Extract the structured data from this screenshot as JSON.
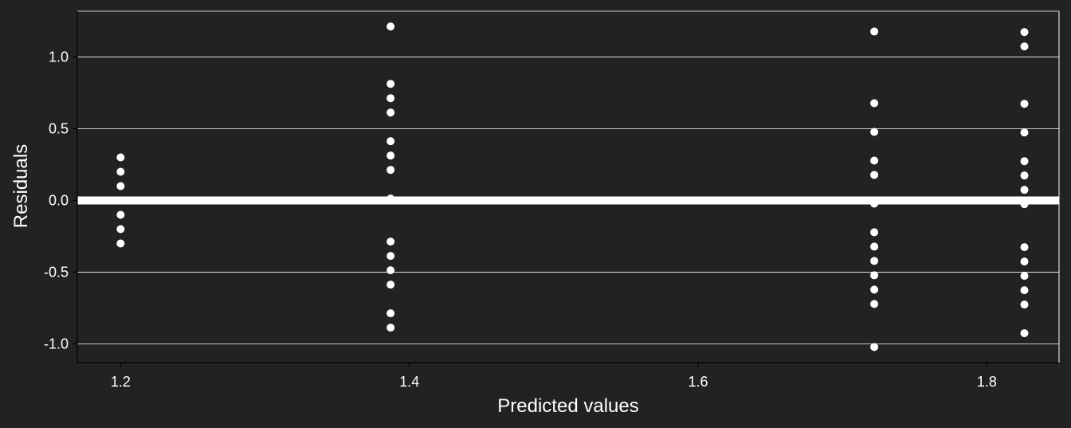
{
  "chart_data": {
    "type": "scatter",
    "title": "",
    "xlabel": "Predicted values",
    "ylabel": "Residuals",
    "xlim": [
      1.17,
      1.85
    ],
    "ylim": [
      -1.12,
      1.32
    ],
    "x_ticks": [
      1.2,
      1.4,
      1.6,
      1.8
    ],
    "x_tick_labels": [
      "1.2",
      "1.4",
      "1.6",
      "1.8"
    ],
    "y_ticks": [
      -1.0,
      -0.5,
      0.0,
      0.5,
      1.0
    ],
    "y_tick_labels": [
      "-1.0",
      "-0.5",
      "0.0",
      "0.5",
      "1.0"
    ],
    "grid": "horizontal",
    "reference_line": 0,
    "colors": {
      "background": "#222222",
      "points": "#ffffff",
      "grid": "#ffffff",
      "reference_line": "#ffffff"
    },
    "points": [
      {
        "x": 1.2,
        "y": 0.3
      },
      {
        "x": 1.2,
        "y": 0.2
      },
      {
        "x": 1.2,
        "y": 0.1
      },
      {
        "x": 1.2,
        "y": -0.1
      },
      {
        "x": 1.2,
        "y": -0.2
      },
      {
        "x": 1.2,
        "y": -0.3
      },
      {
        "x": 1.387,
        "y": 1.213
      },
      {
        "x": 1.387,
        "y": 0.813
      },
      {
        "x": 1.387,
        "y": 0.713
      },
      {
        "x": 1.387,
        "y": 0.613
      },
      {
        "x": 1.387,
        "y": 0.413
      },
      {
        "x": 1.387,
        "y": 0.313
      },
      {
        "x": 1.387,
        "y": 0.213
      },
      {
        "x": 1.387,
        "y": 0.013
      },
      {
        "x": 1.387,
        "y": -0.287
      },
      {
        "x": 1.387,
        "y": -0.387
      },
      {
        "x": 1.387,
        "y": -0.487
      },
      {
        "x": 1.387,
        "y": -0.587
      },
      {
        "x": 1.387,
        "y": -0.787
      },
      {
        "x": 1.387,
        "y": -0.887
      },
      {
        "x": 1.722,
        "y": 1.178
      },
      {
        "x": 1.722,
        "y": 0.678
      },
      {
        "x": 1.722,
        "y": 0.478
      },
      {
        "x": 1.722,
        "y": 0.278
      },
      {
        "x": 1.722,
        "y": 0.178
      },
      {
        "x": 1.722,
        "y": -0.022
      },
      {
        "x": 1.722,
        "y": -0.222
      },
      {
        "x": 1.722,
        "y": -0.322
      },
      {
        "x": 1.722,
        "y": -0.422
      },
      {
        "x": 1.722,
        "y": -0.522
      },
      {
        "x": 1.722,
        "y": -0.622
      },
      {
        "x": 1.722,
        "y": -0.722
      },
      {
        "x": 1.722,
        "y": -1.022
      },
      {
        "x": 1.826,
        "y": 1.174
      },
      {
        "x": 1.826,
        "y": 1.074
      },
      {
        "x": 1.826,
        "y": 0.674
      },
      {
        "x": 1.826,
        "y": 0.474
      },
      {
        "x": 1.826,
        "y": 0.274
      },
      {
        "x": 1.826,
        "y": 0.174
      },
      {
        "x": 1.826,
        "y": 0.074
      },
      {
        "x": 1.826,
        "y": -0.026
      },
      {
        "x": 1.826,
        "y": -0.326
      },
      {
        "x": 1.826,
        "y": -0.426
      },
      {
        "x": 1.826,
        "y": -0.526
      },
      {
        "x": 1.826,
        "y": -0.626
      },
      {
        "x": 1.826,
        "y": -0.726
      },
      {
        "x": 1.826,
        "y": -0.926
      }
    ]
  }
}
